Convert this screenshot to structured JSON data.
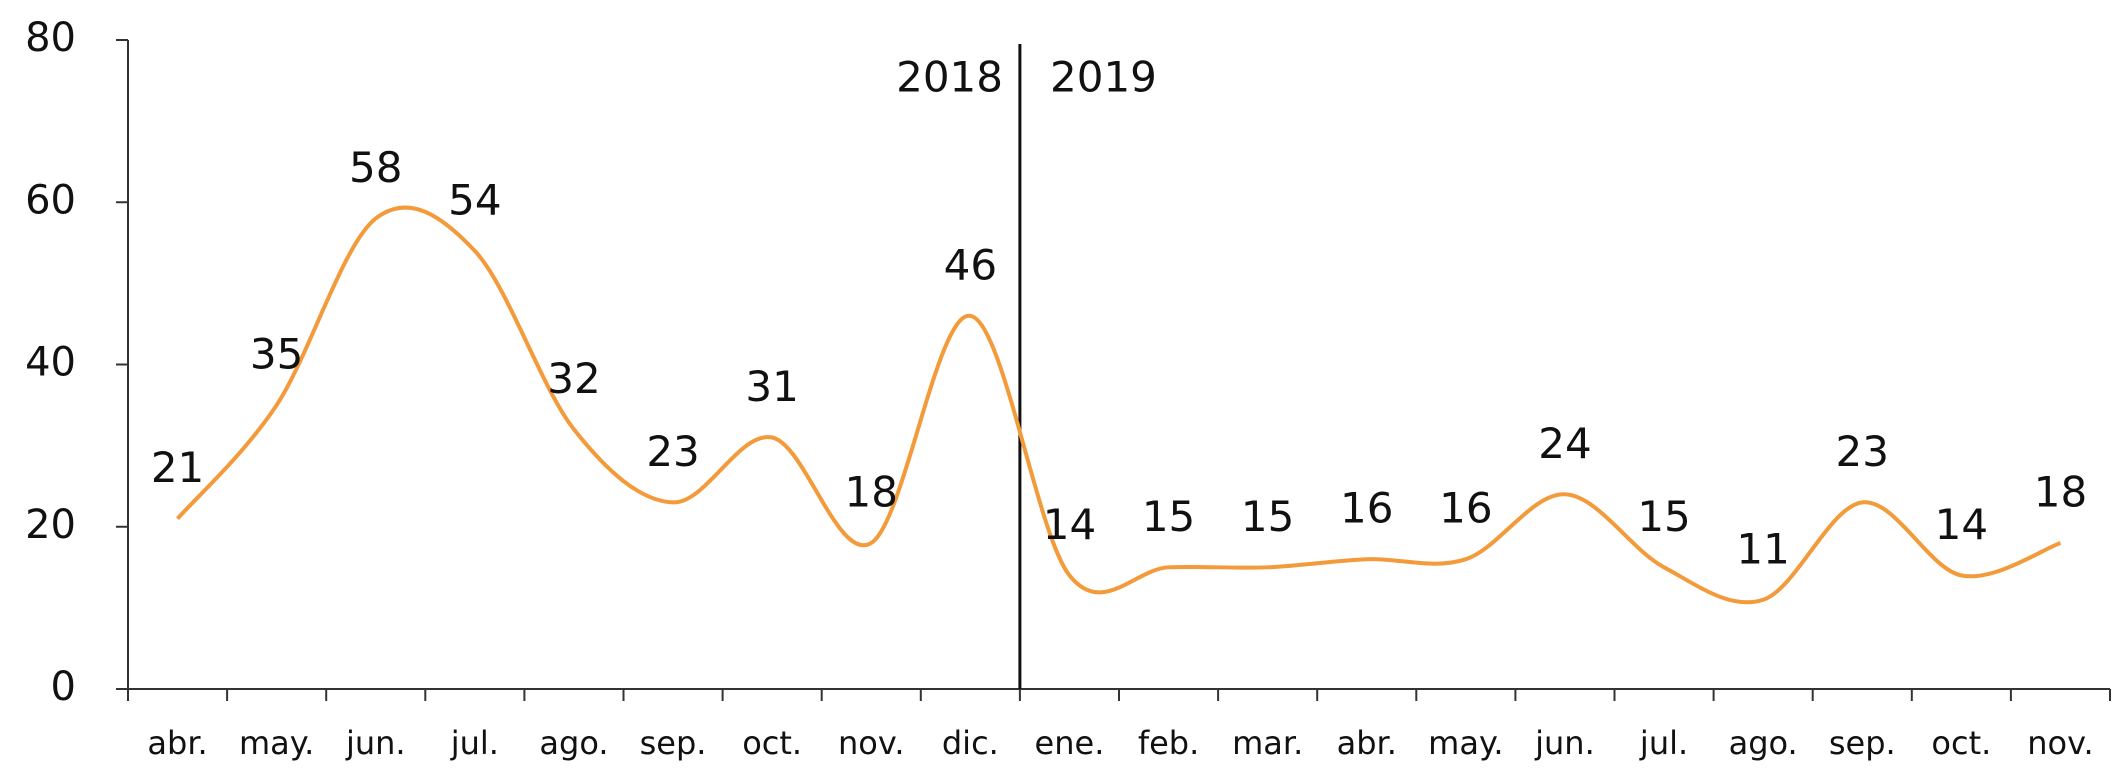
{
  "chart_data": {
    "type": "line",
    "categories": [
      "abr.",
      "may.",
      "jun.",
      "jul.",
      "ago.",
      "sep.",
      "oct.",
      "nov.",
      "dic.",
      "ene.",
      "feb.",
      "mar.",
      "abr.",
      "may.",
      "jun.",
      "jul.",
      "ago.",
      "sep.",
      "oct.",
      "nov."
    ],
    "values": [
      21,
      35,
      58,
      54,
      32,
      23,
      31,
      18,
      46,
      14,
      15,
      15,
      16,
      16,
      24,
      15,
      11,
      23,
      14,
      18
    ],
    "color": "#f39a3a",
    "ylim": [
      0,
      80
    ],
    "yticks": [
      0,
      20,
      40,
      60,
      80
    ],
    "grid": false,
    "annotations": [
      "2018",
      "2019"
    ]
  }
}
